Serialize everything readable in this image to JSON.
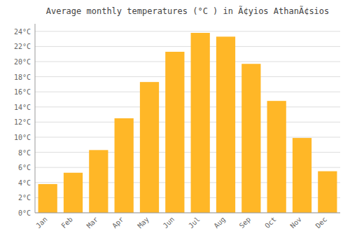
{
  "chart_data": {
    "type": "bar",
    "title": "Average monthly temperatures (°C ) in Ã¢yios AthanÃ¢sios",
    "categories": [
      "Jan",
      "Feb",
      "Mar",
      "Apr",
      "May",
      "Jun",
      "Jul",
      "Aug",
      "Sep",
      "Oct",
      "Nov",
      "Dec"
    ],
    "values": [
      3.8,
      5.3,
      8.3,
      12.5,
      17.3,
      21.3,
      23.8,
      23.3,
      19.7,
      14.8,
      9.9,
      5.5
    ],
    "color": "#FFB727",
    "ylim": [
      0,
      25
    ],
    "yticks": [
      {
        "value": 0,
        "label": "0°C"
      },
      {
        "value": 2,
        "label": "2°C"
      },
      {
        "value": 4,
        "label": "4°C"
      },
      {
        "value": 6,
        "label": "6°C"
      },
      {
        "value": 8,
        "label": "8°C"
      },
      {
        "value": 10,
        "label": "10°C"
      },
      {
        "value": 12,
        "label": "12°C"
      },
      {
        "value": 14,
        "label": "14°C"
      },
      {
        "value": 16,
        "label": "16°C"
      },
      {
        "value": 18,
        "label": "18°C"
      },
      {
        "value": 20,
        "label": "20°C"
      },
      {
        "value": 22,
        "label": "22°C"
      },
      {
        "value": 24,
        "label": "24°C"
      }
    ],
    "grid": true
  }
}
